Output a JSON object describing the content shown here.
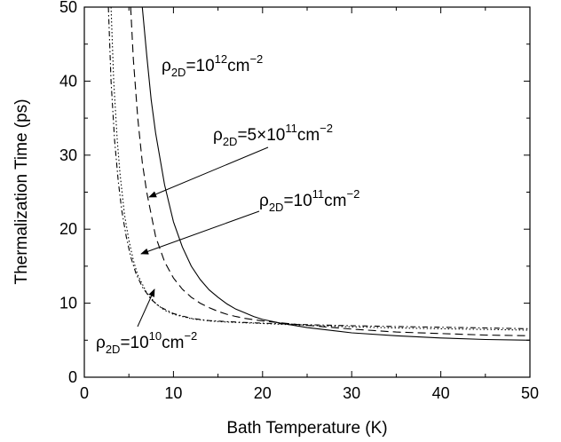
{
  "chart_data": {
    "type": "line",
    "title": "",
    "xlabel": "Bath Temperature (K)",
    "ylabel": "Thermalization Time (ps)",
    "xlim": [
      0,
      50
    ],
    "ylim": [
      0,
      50
    ],
    "x_ticks": [
      "0",
      "10",
      "20",
      "30",
      "40",
      "50"
    ],
    "y_ticks": [
      "0",
      "10",
      "20",
      "30",
      "40",
      "50"
    ],
    "grid": false,
    "legend": "none",
    "series": [
      {
        "name": "ρ2D=10^12 cm^-2",
        "style": "solid",
        "x": [
          6.5,
          7,
          7.5,
          8,
          9,
          10,
          11,
          12,
          13,
          14,
          15,
          16,
          17,
          18,
          19,
          20,
          22,
          25,
          30,
          35,
          40,
          45,
          50
        ],
        "y": [
          50,
          43.5,
          37.5,
          33,
          26,
          21,
          17.6,
          15,
          13.2,
          11.8,
          10.8,
          9.9,
          9.2,
          8.7,
          8.2,
          7.8,
          7.3,
          6.7,
          6.0,
          5.6,
          5.3,
          5.1,
          5.0
        ]
      },
      {
        "name": "ρ2D=5×10^11 cm^-2",
        "style": "dashed",
        "x": [
          5.2,
          5.5,
          6,
          6.5,
          7,
          8,
          9,
          10,
          11,
          12,
          13,
          14,
          15,
          16,
          17,
          18,
          20,
          22,
          25,
          30,
          35,
          40,
          45,
          50
        ],
        "y": [
          50,
          43,
          35,
          29,
          25,
          19,
          15.6,
          13.4,
          11.9,
          10.8,
          10.0,
          9.4,
          8.9,
          8.5,
          8.2,
          7.95,
          7.6,
          7.35,
          7.0,
          6.5,
          6.1,
          5.9,
          5.7,
          5.6
        ]
      },
      {
        "name": "ρ2D=10^11 cm^-2",
        "style": "dotted",
        "x": [
          3.0,
          3.3,
          3.7,
          4,
          4.5,
          5,
          5.5,
          6,
          7,
          8,
          9,
          10,
          12,
          14,
          16,
          18,
          20,
          25,
          30,
          35,
          40,
          45,
          50
        ],
        "y": [
          50,
          40,
          32,
          27.5,
          22,
          18.5,
          15.8,
          13.8,
          11.4,
          9.95,
          9.05,
          8.5,
          7.9,
          7.6,
          7.45,
          7.35,
          7.25,
          7.0,
          6.8,
          6.65,
          6.55,
          6.45,
          6.35
        ]
      },
      {
        "name": "ρ2D=10^10 cm^-2",
        "style": "dashdot",
        "x": [
          2.7,
          3.0,
          3.4,
          3.8,
          4.2,
          4.7,
          5.2,
          5.8,
          6.5,
          7.5,
          8.5,
          10,
          12,
          14,
          16,
          18,
          20,
          25,
          30,
          35,
          40,
          45,
          50
        ],
        "y": [
          50,
          40,
          32,
          26.5,
          22.5,
          19,
          16.3,
          14,
          12.2,
          10.5,
          9.5,
          8.6,
          7.95,
          7.65,
          7.5,
          7.4,
          7.3,
          7.1,
          6.95,
          6.85,
          6.75,
          6.65,
          6.55
        ]
      }
    ],
    "annotations": [
      {
        "base": "ρ",
        "sub": "2D",
        "rest": "=10",
        "sup1": "12",
        "unit": "cm",
        "sup2": "−2"
      },
      {
        "base": "ρ",
        "sub": "2D",
        "rest": "=5×10",
        "sup1": "11",
        "unit": "cm",
        "sup2": "−2"
      },
      {
        "base": "ρ",
        "sub": "2D",
        "rest": "=10",
        "sup1": "11",
        "unit": "cm",
        "sup2": "−2"
      },
      {
        "base": "ρ",
        "sub": "2D",
        "rest": "=10",
        "sup1": "10",
        "unit": "cm",
        "sup2": "−2"
      }
    ]
  }
}
